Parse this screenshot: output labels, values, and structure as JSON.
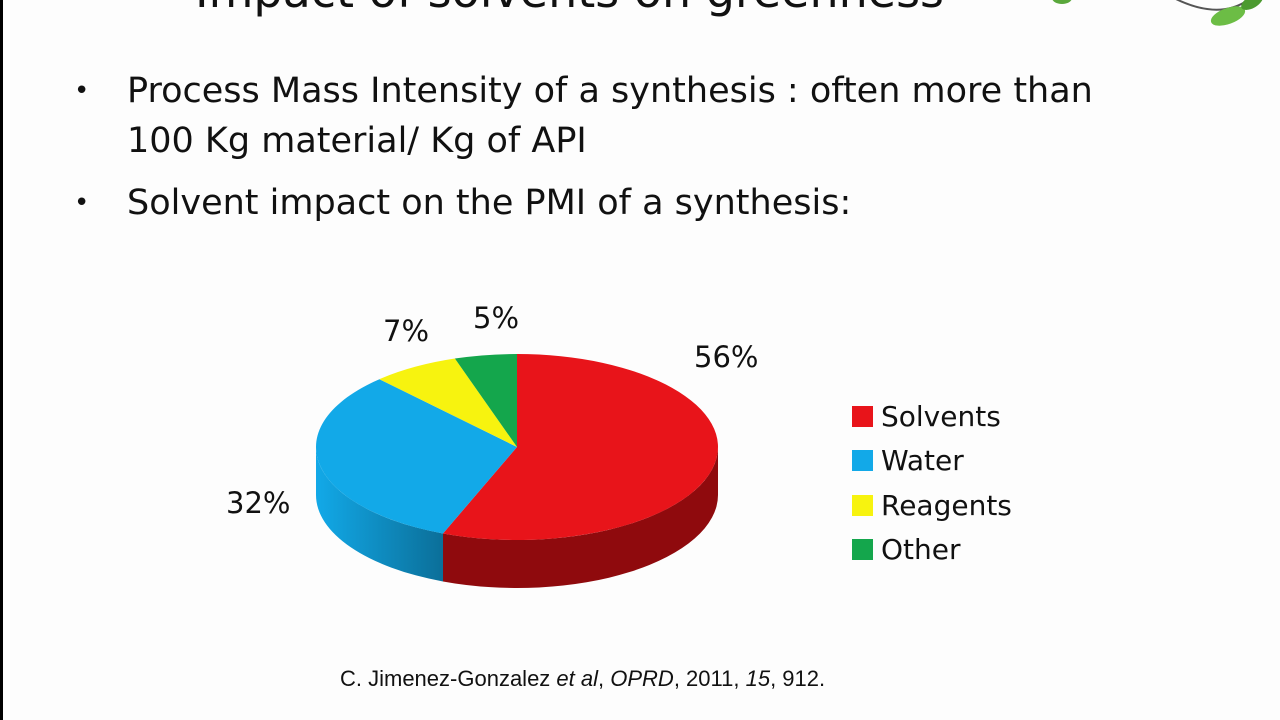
{
  "slide": {
    "title": "Impact of solvents on greenness",
    "bullets": [
      "Process Mass Intensity of a synthesis : often more than 100 Kg material/ Kg of API",
      "Solvent impact on the PMI of a synthesis:"
    ],
    "citation": {
      "authors": "C. Jimenez-Gonzalez ",
      "etal": "et al",
      "sep1": ", ",
      "journal": "OPRD",
      "year": ", 2011, ",
      "volume": "15",
      "pages": ", 912."
    }
  },
  "chart_data": {
    "type": "pie",
    "title": "",
    "categories": [
      "Solvents",
      "Water",
      "Reagents",
      "Other"
    ],
    "values": [
      56,
      32,
      7,
      5
    ],
    "value_labels": [
      "56%",
      "32%",
      "7%",
      "5%"
    ],
    "colors": [
      "#e8141a",
      "#12a9e8",
      "#f7f30f",
      "#14a64c"
    ],
    "dark_colors": [
      "#8f0a0d",
      "#0b6f99",
      "#a8a60a",
      "#0c6b31"
    ],
    "style": "3d",
    "legend": "right"
  }
}
